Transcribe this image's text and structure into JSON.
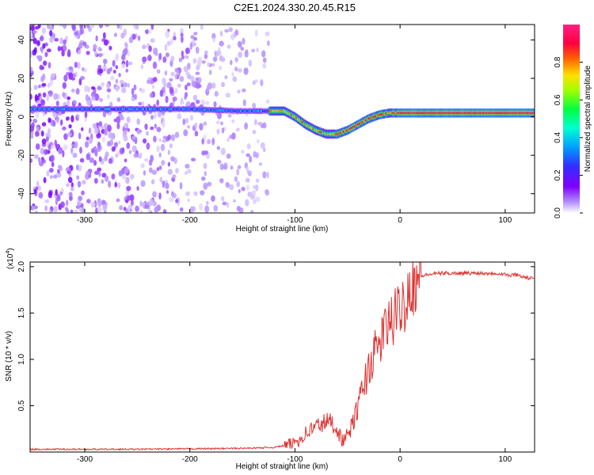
{
  "title": "C2E1.2024.330.20.45.R15",
  "chart_data": [
    {
      "type": "heatmap",
      "xlabel": "Height of straight line (km)",
      "ylabel": "Frequency (Hz)",
      "xlim": [
        -352,
        128
      ],
      "ylim": [
        -50,
        48
      ],
      "xticks": [
        -300,
        -200,
        -100,
        0,
        100
      ],
      "xtick_labels": [
        "-300",
        "-200",
        "-100",
        "0",
        "100"
      ],
      "yticks": [
        -40,
        -20,
        0,
        20,
        40
      ],
      "ytick_labels": [
        "-40",
        "-20",
        "0",
        "20",
        "40"
      ],
      "colorbar": {
        "label": "Normalized spectral amplitude",
        "range": [
          0,
          1
        ],
        "ticks": [
          0,
          0.2,
          0.4,
          0.6,
          0.8
        ],
        "tick_labels": [
          "0.0",
          "0.2",
          "0.4",
          "0.6",
          "0.8"
        ],
        "colors": [
          "#ffffff",
          "#b08cff",
          "#8000ff",
          "#3030ff",
          "#00a0ff",
          "#00ffd0",
          "#00ff40",
          "#a0ff00",
          "#ffe000",
          "#ff6000",
          "#ff0040",
          "#ff2080"
        ]
      },
      "ridge": {
        "x": [
          -300,
          -250,
          -200,
          -150,
          -125,
          -110,
          -100,
          -90,
          -80,
          -70,
          -60,
          -50,
          -40,
          -30,
          -20,
          -10,
          0,
          30,
          60,
          90,
          128
        ],
        "freq": [
          4,
          4,
          4,
          3,
          3,
          3,
          0,
          -4,
          -7,
          -9,
          -9,
          -7,
          -4,
          -1,
          1,
          2,
          2,
          2,
          2,
          2,
          2
        ]
      },
      "grid": false
    },
    {
      "type": "line",
      "xlabel": "Height of straight line (km)",
      "ylabel": "SNR (10 * v/v)",
      "yscale_label": "(x10",
      "yscale_exp": "4",
      "yscale_close": ")",
      "xlim": [
        -352,
        128
      ],
      "ylim": [
        0,
        2.05
      ],
      "xticks": [
        -300,
        -200,
        -100,
        0,
        100
      ],
      "xtick_labels": [
        "-300",
        "-200",
        "-100",
        "0",
        "100"
      ],
      "yticks": [
        0.5,
        1.0,
        1.5,
        2.0
      ],
      "ytick_labels": [
        "0.5",
        "1.0",
        "1.5",
        "2.0"
      ],
      "line_color": "#e03030",
      "series": [
        {
          "x": [
            -352,
            -300,
            -250,
            -200,
            -150,
            -120,
            -105,
            -95,
            -90,
            -80,
            -75,
            -70,
            -65,
            -60,
            -55,
            -50,
            -45,
            -40,
            -35,
            -30,
            -25,
            -20,
            -15,
            -10,
            -5,
            0,
            5,
            10,
            15,
            20,
            25,
            30,
            40,
            50,
            60,
            70,
            80,
            90,
            100,
            105,
            110,
            115,
            120,
            128
          ],
          "y": [
            0.03,
            0.03,
            0.03,
            0.035,
            0.04,
            0.05,
            0.08,
            0.14,
            0.2,
            0.28,
            0.3,
            0.33,
            0.32,
            0.25,
            0.12,
            0.18,
            0.3,
            0.5,
            0.7,
            0.9,
            1.05,
            1.15,
            1.3,
            1.4,
            1.45,
            1.55,
            1.65,
            1.8,
            1.87,
            1.9,
            1.91,
            1.92,
            1.93,
            1.93,
            1.93,
            1.93,
            1.93,
            1.93,
            1.92,
            1.9,
            1.92,
            1.9,
            1.88,
            1.87
          ]
        }
      ],
      "grid": false
    }
  ]
}
